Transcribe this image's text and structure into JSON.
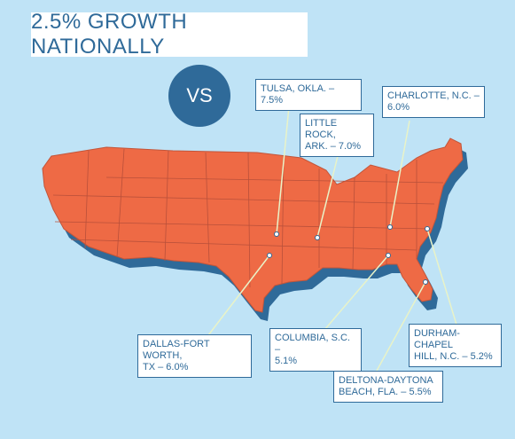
{
  "title": "2.5% GROWTH NATIONALLY",
  "vs": "VS",
  "colors": {
    "background": "#bfe3f6",
    "land": "#ee6a45",
    "shadow": "#2f6a99",
    "accent": "#2f6a99",
    "leader": "#e9f3c8"
  },
  "cities": [
    {
      "label": "TULSA, OKLA. – 7.5%"
    },
    {
      "label": "LITTLE ROCK,\nARK. – 7.0%"
    },
    {
      "label": "CHARLOTTE, N.C. –\n6.0%"
    },
    {
      "label": "DALLAS-FORT WORTH,\nTX – 6.0%"
    },
    {
      "label": "COLUMBIA, S.C. –\n5.1%"
    },
    {
      "label": "DURHAM-CHAPEL\nHILL, N.C. – 5.2%"
    },
    {
      "label": "DELTONA-DAYTONA\nBEACH, FLA. – 5.5%"
    }
  ]
}
